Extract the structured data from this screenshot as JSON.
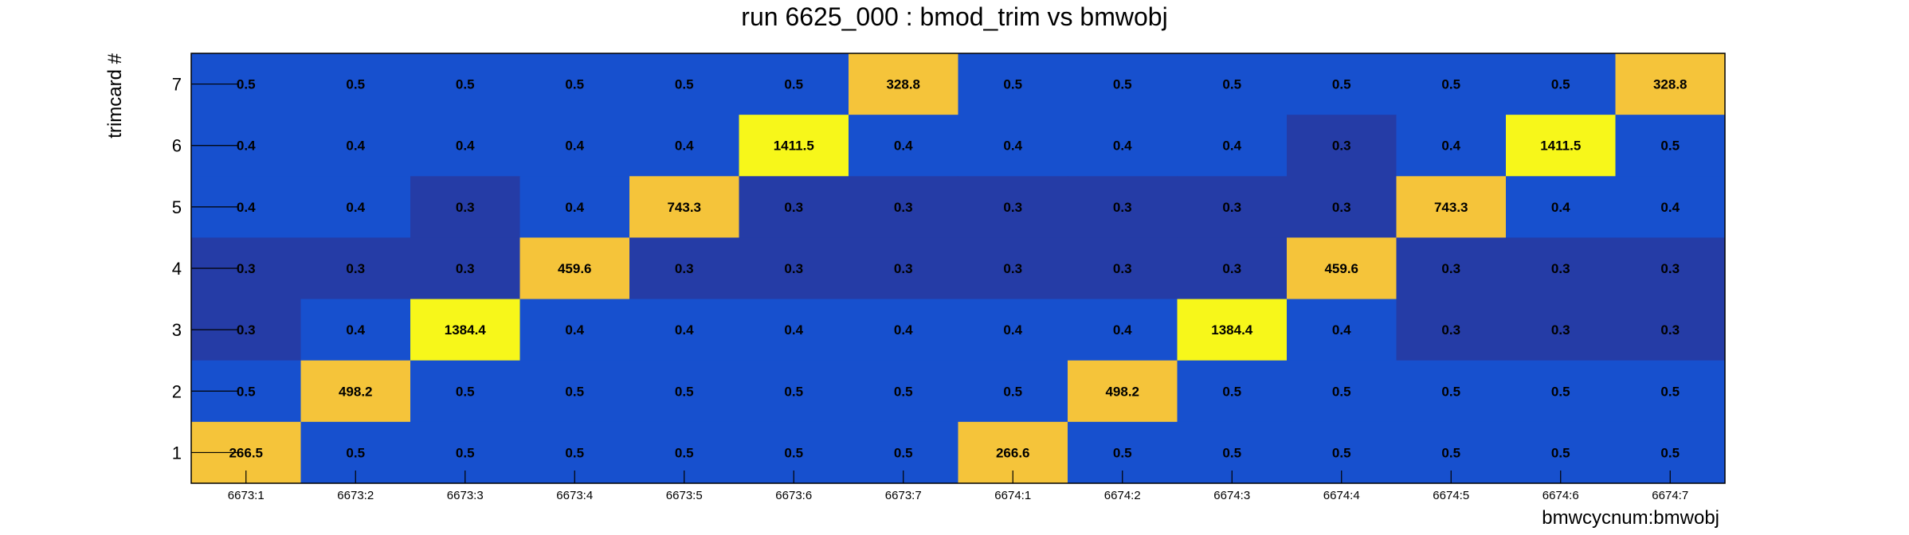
{
  "chart_data": {
    "type": "heatmap",
    "title": "run 6625_000 : bmod_trim vs bmwobj",
    "xlabel": "bmwcycnum:bmwobj",
    "ylabel": "trimcard #",
    "x_categories": [
      "6673:1",
      "6673:2",
      "6673:3",
      "6673:4",
      "6673:5",
      "6673:6",
      "6673:7",
      "6674:1",
      "6674:2",
      "6674:3",
      "6674:4",
      "6674:5",
      "6674:6",
      "6674:7"
    ],
    "y_categories": [
      "1",
      "2",
      "3",
      "4",
      "5",
      "6",
      "7"
    ],
    "rows": [
      {
        "y": "7",
        "values": [
          0.5,
          0.5,
          0.5,
          0.5,
          0.5,
          0.5,
          328.8,
          0.5,
          0.5,
          0.5,
          0.5,
          0.5,
          0.5,
          328.8
        ]
      },
      {
        "y": "6",
        "values": [
          0.4,
          0.4,
          0.4,
          0.4,
          0.4,
          1411.5,
          0.4,
          0.4,
          0.4,
          0.4,
          0.3,
          0.4,
          1411.5,
          0.5
        ]
      },
      {
        "y": "5",
        "values": [
          0.4,
          0.4,
          0.3,
          0.4,
          743.3,
          0.3,
          0.3,
          0.3,
          0.3,
          0.3,
          0.3,
          743.3,
          0.4,
          0.4
        ]
      },
      {
        "y": "4",
        "values": [
          0.3,
          0.3,
          0.3,
          459.6,
          0.3,
          0.3,
          0.3,
          0.3,
          0.3,
          0.3,
          459.6,
          0.3,
          0.3,
          0.3
        ]
      },
      {
        "y": "3",
        "values": [
          0.3,
          0.4,
          1384.4,
          0.4,
          0.4,
          0.4,
          0.4,
          0.4,
          0.4,
          1384.4,
          0.4,
          0.3,
          0.3,
          0.3
        ]
      },
      {
        "y": "2",
        "values": [
          0.5,
          498.2,
          0.5,
          0.5,
          0.5,
          0.5,
          0.5,
          0.5,
          498.2,
          0.5,
          0.5,
          0.5,
          0.5,
          0.5
        ]
      },
      {
        "y": "1",
        "values": [
          266.5,
          0.5,
          0.5,
          0.5,
          0.5,
          0.5,
          0.5,
          266.6,
          0.5,
          0.5,
          0.5,
          0.5,
          0.5,
          0.5
        ]
      }
    ],
    "colors": {
      "low": "#253ca6",
      "mid_low": "#1750ce",
      "high": "#f5c43a",
      "highest": "#f7f71a"
    }
  }
}
